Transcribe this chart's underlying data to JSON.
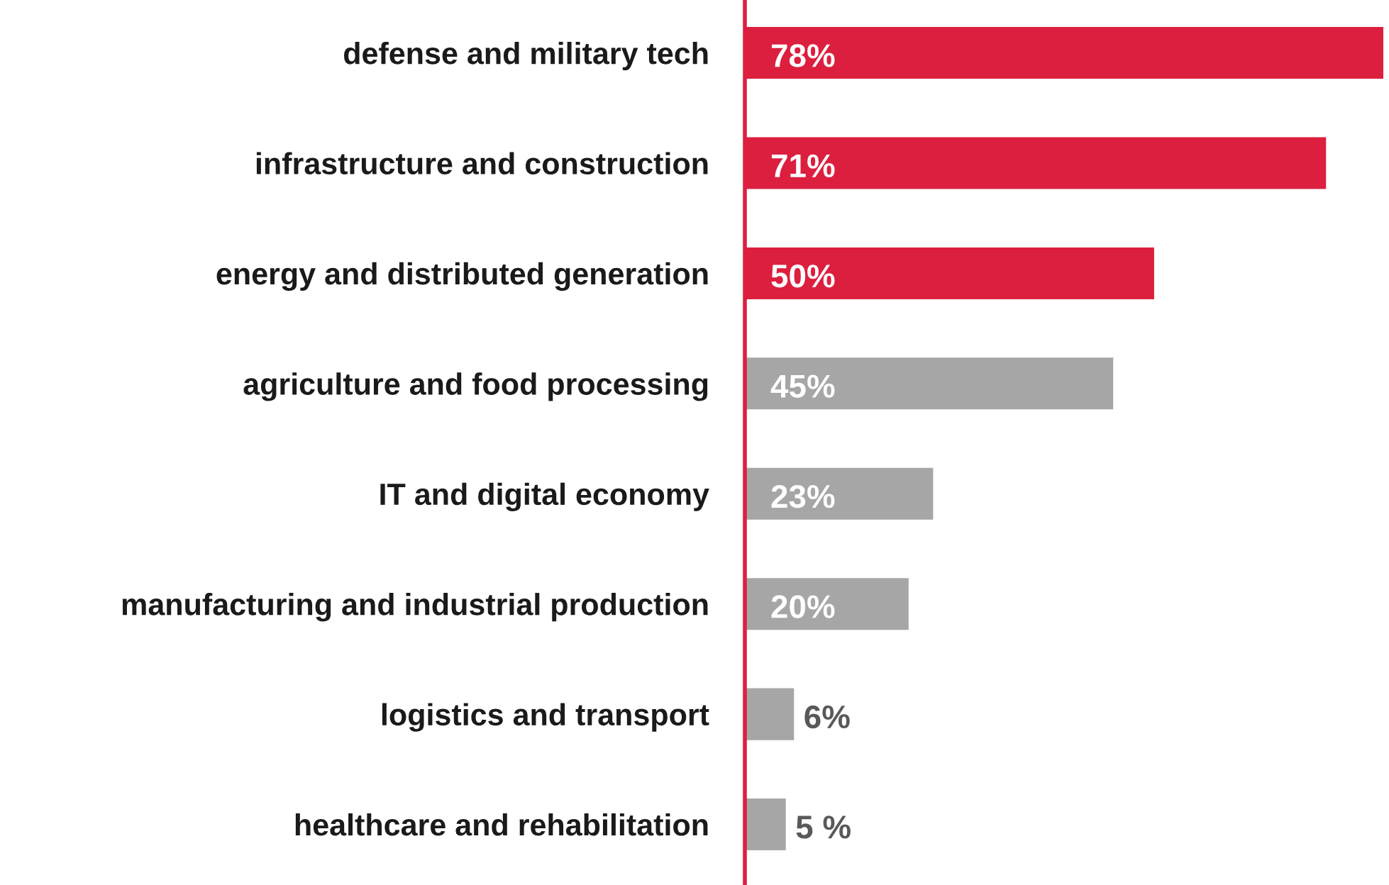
{
  "chart_data": {
    "type": "bar",
    "orientation": "horizontal",
    "tick_labels": "y",
    "categories": [
      "defense and military tech",
      "infrastructure and construction",
      "energy and distributed generation",
      "agriculture and food processing",
      "IT and digital economy",
      "manufacturing and industrial production",
      "logistics and transport",
      "healthcare and rehabilitation"
    ],
    "values": [
      78,
      71,
      50,
      45,
      23,
      20,
      6,
      5
    ],
    "colors": [
      "#dc1f3e",
      "#dc1f3e",
      "#dc1f3e",
      "#a6a6a6",
      "#a6a6a6",
      "#a6a6a6",
      "#a6a6a6",
      "#a6a6a6"
    ],
    "value_labels": [
      "78%",
      "71%",
      "50%",
      "45%",
      "23%",
      "20%",
      "6%",
      "5 %"
    ]
  }
}
